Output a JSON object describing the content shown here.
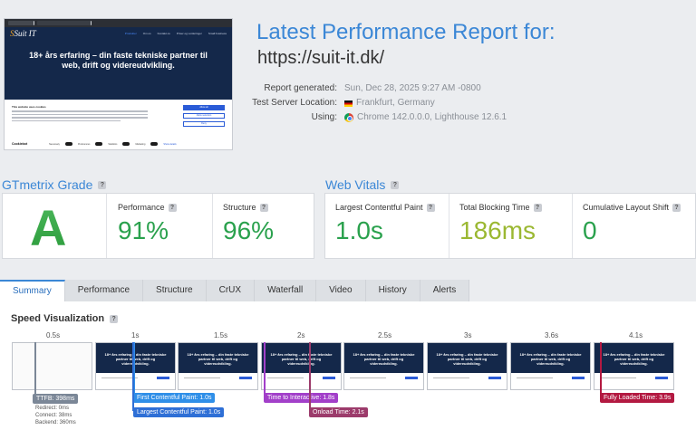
{
  "thumbnail": {
    "logo": "Suit IT",
    "nav": [
      "Produkter",
      "Om os",
      "Kontakt os",
      "Priser og vurderinger",
      "Small business"
    ],
    "hero": "18+ års erfaring – din faste tekniske partner til web, drift og videreudvikling.",
    "cookie_brand": "Cookiebot",
    "cookie_heading": "This website uses cookies",
    "cookie_buttons": [
      "Allow all",
      "Allow selection",
      "Deny"
    ],
    "cookie_toggles": [
      "Necessary",
      "Preferences",
      "Statistics",
      "Marketing",
      "Show details"
    ]
  },
  "report": {
    "title": "Latest Performance Report for:",
    "url": "https://suit-it.dk/",
    "labels": {
      "generated": "Report generated:",
      "location": "Test Server Location:",
      "using": "Using:"
    },
    "generated": "Sun, Dec 28, 2025 9:27 AM -0800",
    "location": "Frankfurt, Germany",
    "using": "Chrome 142.0.0.0, Lighthouse 12.6.1"
  },
  "grade": {
    "title": "GTmetrix Grade",
    "letter": "A",
    "performance_label": "Performance",
    "performance": "91%",
    "structure_label": "Structure",
    "structure": "96%"
  },
  "vitals": {
    "title": "Web Vitals",
    "lcp_label": "Largest Contentful Paint",
    "lcp": "1.0s",
    "tbt_label": "Total Blocking Time",
    "tbt": "186ms",
    "cls_label": "Cumulative Layout Shift",
    "cls": "0"
  },
  "tabs": [
    "Summary",
    "Performance",
    "Structure",
    "CrUX",
    "Waterfall",
    "Video",
    "History",
    "Alerts"
  ],
  "speed": {
    "title": "Speed Visualization",
    "ticks": [
      "0.5s",
      "1s",
      "1.5s",
      "2s",
      "2.5s",
      "3s",
      "3.6s",
      "4.1s"
    ],
    "markers": {
      "ttfb": "TTFB: 398ms",
      "ttfb_details": [
        "Redirect: 0ms",
        "Connect: 38ms",
        "Backend: 360ms"
      ],
      "fcp": "First Contentful Paint: 1.0s",
      "lcp": "Largest Contentful Paint: 1.0s",
      "tti": "Time to Interactive: 1.8s",
      "onload": "Onload Time: 2.1s",
      "fully_loaded": "Fully Loaded Time: 3.9s"
    }
  },
  "colors": {
    "accent": "#3b87d6",
    "grade": "#2aa14d",
    "ttfb": "#7b8797",
    "fcp": "#2f8fe8",
    "lcp": "#2e6fd6",
    "tti": "#a23fc9",
    "onload": "#9c3b6b",
    "fully_loaded": "#b31941"
  }
}
